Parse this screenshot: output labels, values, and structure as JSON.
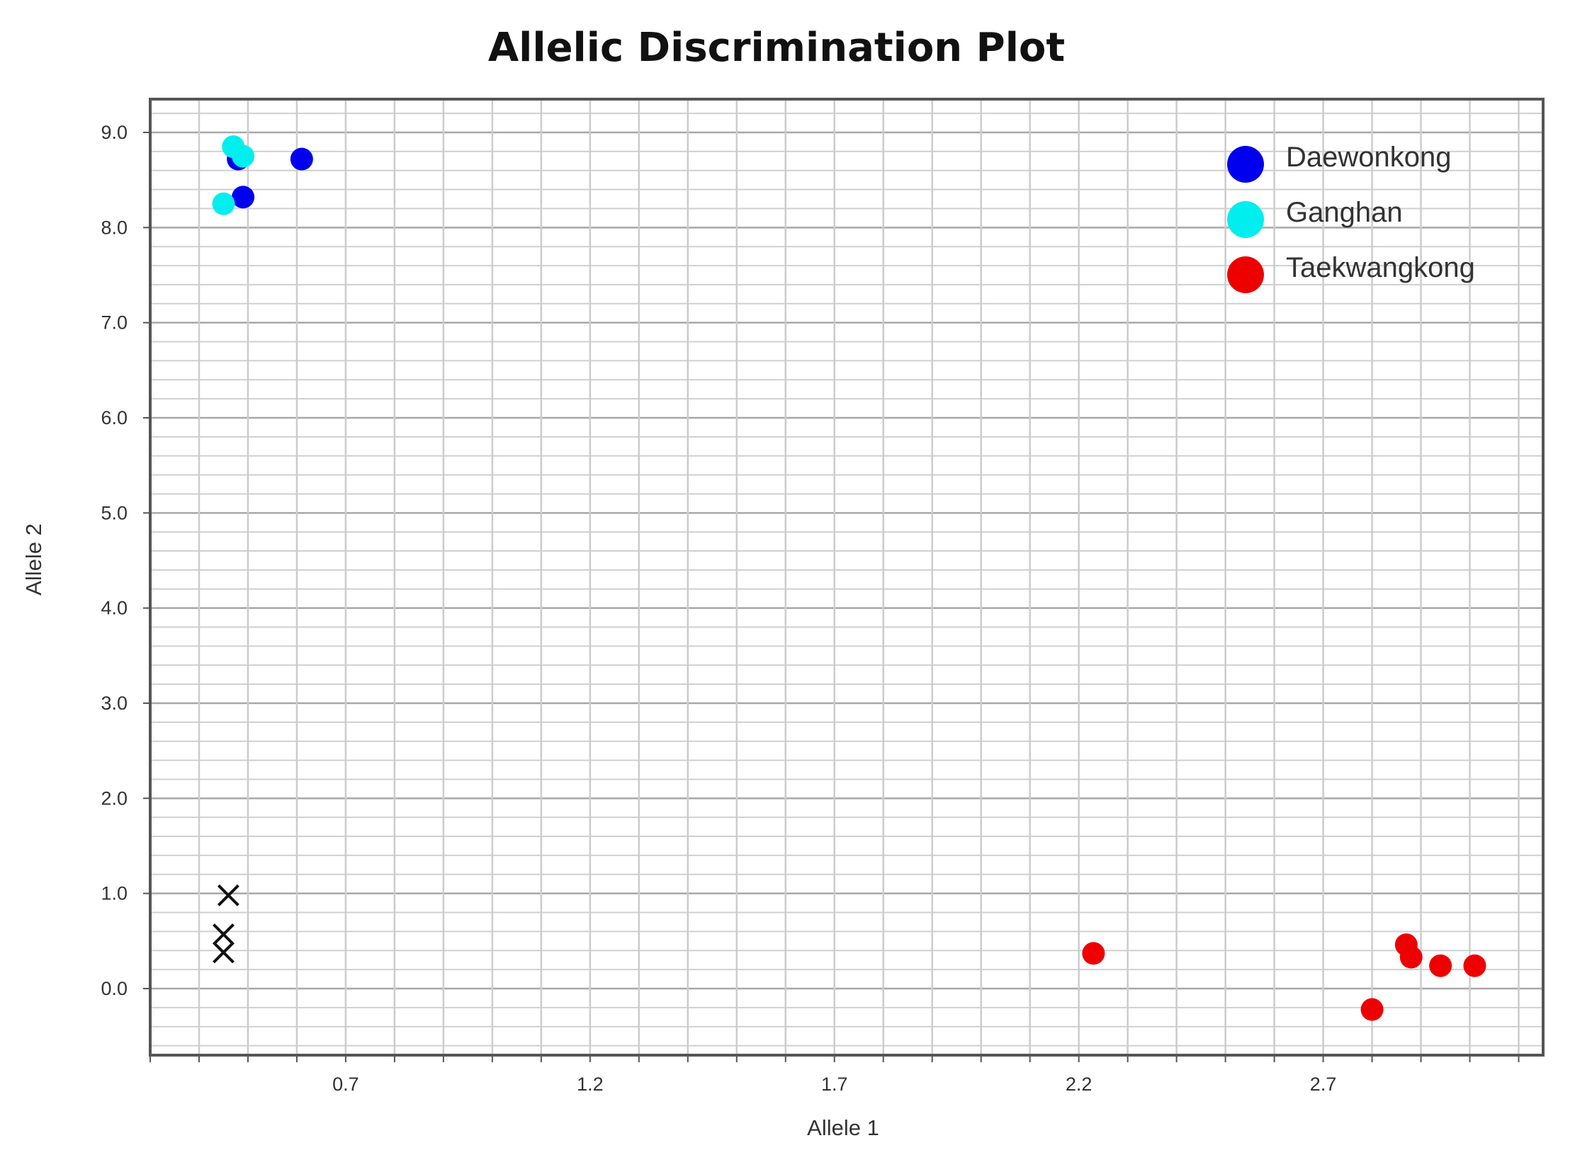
{
  "chart_data": {
    "type": "scatter",
    "title": "Allelic Discrimination Plot",
    "xlabel": "Allele 1",
    "ylabel": "Allele 2",
    "xlim": [
      0.3,
      3.15
    ],
    "ylim": [
      -0.7,
      9.35
    ],
    "xticks": [
      0.7,
      1.2,
      1.7,
      2.2,
      2.7
    ],
    "xtick_labels": [
      "0.7",
      "1.2",
      "1.7",
      "2.2",
      "2.7"
    ],
    "yticks": [
      0.0,
      1.0,
      2.0,
      3.0,
      4.0,
      5.0,
      6.0,
      7.0,
      8.0,
      9.0
    ],
    "ytick_labels": [
      "0.0",
      "1.0",
      "2.0",
      "3.0",
      "4.0",
      "5.0",
      "6.0",
      "7.0",
      "8.0",
      "9.0"
    ],
    "grid": true,
    "legend_position": "top-right",
    "series": [
      {
        "name": "Daewonkong",
        "color": "#0000ee",
        "marker": "circle",
        "points": [
          [
            0.48,
            8.72
          ],
          [
            0.49,
            8.32
          ],
          [
            0.61,
            8.72
          ]
        ]
      },
      {
        "name": "Ganghan",
        "color": "#00eeee",
        "marker": "circle",
        "points": [
          [
            0.47,
            8.85
          ],
          [
            0.49,
            8.75
          ],
          [
            0.45,
            8.25
          ]
        ]
      },
      {
        "name": "Taekwangkong",
        "color": "#ee0000",
        "marker": "circle",
        "points": [
          [
            2.23,
            0.37
          ],
          [
            2.8,
            -0.22
          ],
          [
            2.87,
            0.46
          ],
          [
            2.88,
            0.33
          ],
          [
            2.94,
            0.24
          ],
          [
            3.01,
            0.24
          ]
        ]
      },
      {
        "name": "",
        "color": "#111111",
        "marker": "x",
        "points": [
          [
            0.46,
            0.98
          ],
          [
            0.45,
            0.57
          ],
          [
            0.45,
            0.38
          ]
        ]
      }
    ]
  }
}
